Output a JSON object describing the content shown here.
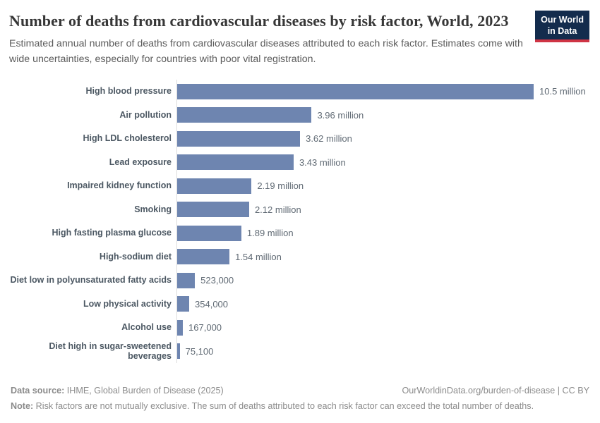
{
  "header": {
    "title": "Number of deaths from cardiovascular diseases by risk factor, World, 2023",
    "subtitle": "Estimated annual number of deaths from cardiovascular diseases attributed to each risk factor. Estimates come with wide uncertainties, especially for countries with poor vital registration.",
    "logo_line1": "Our World",
    "logo_line2": "in Data"
  },
  "chart_data": {
    "type": "bar",
    "orientation": "horizontal",
    "title": "Number of deaths from cardiovascular diseases by risk factor, World, 2023",
    "categories": [
      "High blood pressure",
      "Air pollution",
      "High LDL cholesterol",
      "Lead exposure",
      "Impaired kidney function",
      "Smoking",
      "High fasting plasma glucose",
      "High-sodium diet",
      "Diet low in polyunsaturated fatty acids",
      "Low physical activity",
      "Alcohol use",
      "Diet high in sugar-sweetened\nbeverages"
    ],
    "values": [
      10500000,
      3960000,
      3620000,
      3430000,
      2190000,
      2120000,
      1890000,
      1540000,
      523000,
      354000,
      167000,
      75100
    ],
    "value_labels": [
      "10.5 million",
      "3.96 million",
      "3.62 million",
      "3.43 million",
      "2.19 million",
      "2.12 million",
      "1.89 million",
      "1.54 million",
      "523,000",
      "354,000",
      "167,000",
      "75,100"
    ],
    "xlim": [
      0,
      10500000
    ],
    "xlabel": "",
    "ylabel": "",
    "grid": false,
    "legend": false,
    "bar_color": "#6e85b0",
    "axis_line_color": "#dcdcdc"
  },
  "footer": {
    "datasource_label": "Data source:",
    "datasource_text": " IHME, Global Burden of Disease (2025)",
    "citation": "OurWorldinData.org/burden-of-disease | CC BY",
    "note_label": "Note:",
    "note_text": " Risk factors are not mutually exclusive. The sum of deaths attributed to each risk factor can exceed the total number of deaths."
  }
}
